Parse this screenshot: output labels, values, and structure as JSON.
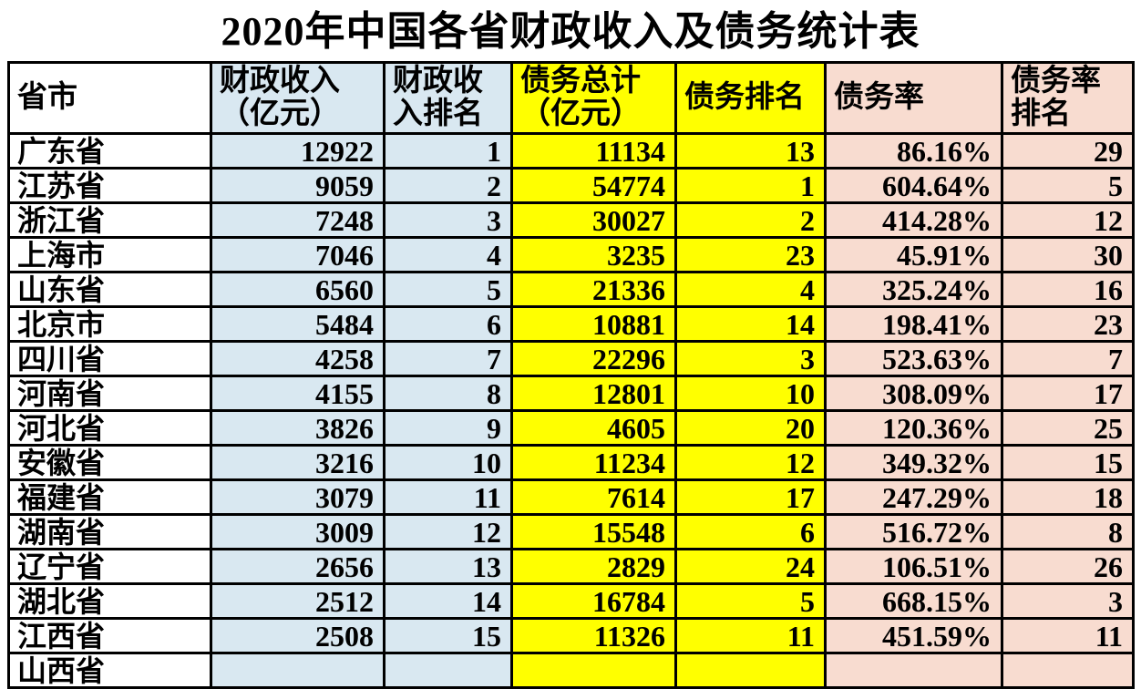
{
  "title": "2020年中国各省财政收入及债务统计表",
  "chart_data": {
    "type": "table",
    "title": "2020年中国各省财政收入及债务统计表",
    "columns": [
      {
        "key": "province",
        "label": "省市"
      },
      {
        "key": "revenue",
        "label": "财政收入\n（亿元）"
      },
      {
        "key": "revenue_rank",
        "label": "财政收\n入排名"
      },
      {
        "key": "debt",
        "label": "债务总计\n（亿元）"
      },
      {
        "key": "debt_rank",
        "label": "债务排名"
      },
      {
        "key": "debt_ratio",
        "label": "债务率"
      },
      {
        "key": "debt_ratio_rank",
        "label": "债务率\n排名"
      }
    ],
    "rows": [
      {
        "province": "广东省",
        "revenue": "12922",
        "revenue_rank": "1",
        "debt": "11134",
        "debt_rank": "13",
        "debt_ratio": "86.16%",
        "debt_ratio_rank": "29"
      },
      {
        "province": "江苏省",
        "revenue": "9059",
        "revenue_rank": "2",
        "debt": "54774",
        "debt_rank": "1",
        "debt_ratio": "604.64%",
        "debt_ratio_rank": "5"
      },
      {
        "province": "浙江省",
        "revenue": "7248",
        "revenue_rank": "3",
        "debt": "30027",
        "debt_rank": "2",
        "debt_ratio": "414.28%",
        "debt_ratio_rank": "12"
      },
      {
        "province": "上海市",
        "revenue": "7046",
        "revenue_rank": "4",
        "debt": "3235",
        "debt_rank": "23",
        "debt_ratio": "45.91%",
        "debt_ratio_rank": "30"
      },
      {
        "province": "山东省",
        "revenue": "6560",
        "revenue_rank": "5",
        "debt": "21336",
        "debt_rank": "4",
        "debt_ratio": "325.24%",
        "debt_ratio_rank": "16"
      },
      {
        "province": "北京市",
        "revenue": "5484",
        "revenue_rank": "6",
        "debt": "10881",
        "debt_rank": "14",
        "debt_ratio": "198.41%",
        "debt_ratio_rank": "23"
      },
      {
        "province": "四川省",
        "revenue": "4258",
        "revenue_rank": "7",
        "debt": "22296",
        "debt_rank": "3",
        "debt_ratio": "523.63%",
        "debt_ratio_rank": "7"
      },
      {
        "province": "河南省",
        "revenue": "4155",
        "revenue_rank": "8",
        "debt": "12801",
        "debt_rank": "10",
        "debt_ratio": "308.09%",
        "debt_ratio_rank": "17"
      },
      {
        "province": "河北省",
        "revenue": "3826",
        "revenue_rank": "9",
        "debt": "4605",
        "debt_rank": "20",
        "debt_ratio": "120.36%",
        "debt_ratio_rank": "25"
      },
      {
        "province": "安徽省",
        "revenue": "3216",
        "revenue_rank": "10",
        "debt": "11234",
        "debt_rank": "12",
        "debt_ratio": "349.32%",
        "debt_ratio_rank": "15"
      },
      {
        "province": "福建省",
        "revenue": "3079",
        "revenue_rank": "11",
        "debt": "7614",
        "debt_rank": "17",
        "debt_ratio": "247.29%",
        "debt_ratio_rank": "18"
      },
      {
        "province": "湖南省",
        "revenue": "3009",
        "revenue_rank": "12",
        "debt": "15548",
        "debt_rank": "6",
        "debt_ratio": "516.72%",
        "debt_ratio_rank": "8"
      },
      {
        "province": "辽宁省",
        "revenue": "2656",
        "revenue_rank": "13",
        "debt": "2829",
        "debt_rank": "24",
        "debt_ratio": "106.51%",
        "debt_ratio_rank": "26"
      },
      {
        "province": "湖北省",
        "revenue": "2512",
        "revenue_rank": "14",
        "debt": "16784",
        "debt_rank": "5",
        "debt_ratio": "668.15%",
        "debt_ratio_rank": "3"
      },
      {
        "province": "江西省",
        "revenue": "2508",
        "revenue_rank": "15",
        "debt": "11326",
        "debt_rank": "11",
        "debt_ratio": "451.59%",
        "debt_ratio_rank": "11"
      }
    ],
    "partial_row": {
      "province": "山西省",
      "revenue": "",
      "revenue_rank": "",
      "debt": "",
      "debt_rank": "",
      "debt_ratio": "",
      "debt_ratio_rank": ""
    }
  },
  "colors": {
    "column_blue": "#d9e8f1",
    "column_yellow": "#ffff00",
    "column_pink": "#f8dcd0",
    "border": "#000000",
    "text": "#000000",
    "page_background": "#ffffff"
  }
}
